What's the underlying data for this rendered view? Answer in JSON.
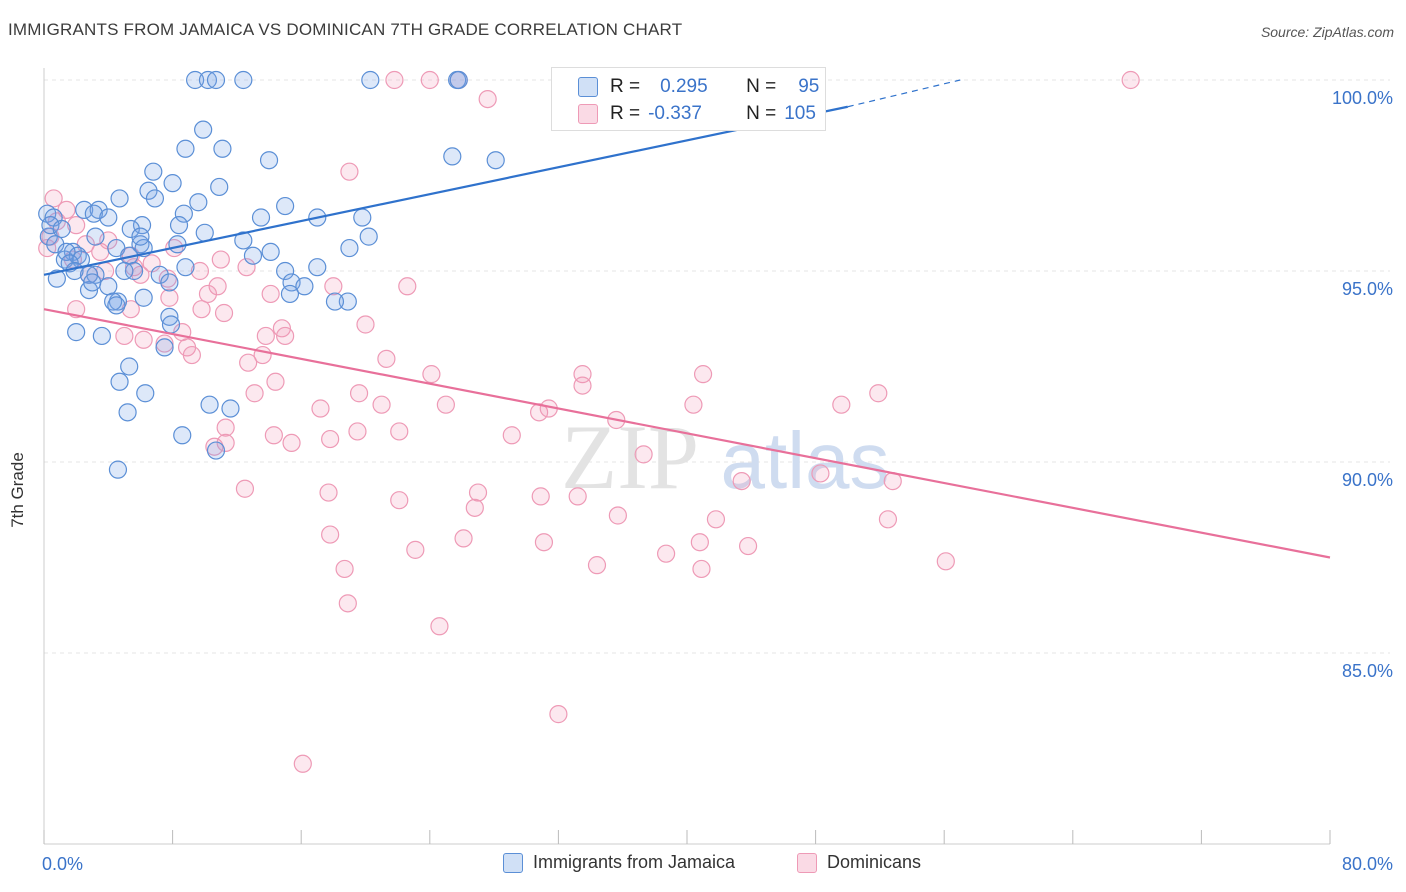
{
  "title": "IMMIGRANTS FROM JAMAICA VS DOMINICAN 7TH GRADE CORRELATION CHART",
  "source": "Source: ZipAtlas.com",
  "watermark": {
    "zip": "ZIP",
    "atlas": "atlas"
  },
  "legend": {
    "jamaica": {
      "r_label": "R =",
      "r_value": "0.295",
      "n_label": "N =",
      "n_value": "95"
    },
    "dominican": {
      "r_label": "R =",
      "r_value": "-0.337",
      "n_label": "N =",
      "n_value": "105"
    }
  },
  "bottom_legend": {
    "jamaica": "Immigrants from Jamaica",
    "dominican": "Dominicans"
  },
  "colors": {
    "jamaica_fill": "rgba(120,165,230,0.25)",
    "jamaica_stroke": "#5b8fd6",
    "jamaica_line": "#2f72cc",
    "dominican_fill": "rgba(240,150,180,0.22)",
    "dominican_stroke": "#ee9ab6",
    "dominican_line": "#e8709a",
    "tick_label": "#3a73c9"
  },
  "chart_data": {
    "type": "scatter",
    "title": "IMMIGRANTS FROM JAMAICA VS DOMINICAN 7TH GRADE CORRELATION CHART",
    "xlabel": "",
    "ylabel": "7th Grade",
    "xlim": [
      0,
      80
    ],
    "ylim": [
      80.5,
      100.8
    ],
    "x_tick_labels": [
      {
        "x": 0,
        "label": "0.0%"
      },
      {
        "x": 80,
        "label": "80.0%"
      }
    ],
    "y_tick_labels": [
      {
        "y": 100,
        "label": "100.0%"
      },
      {
        "y": 95,
        "label": "95.0%"
      },
      {
        "y": 90,
        "label": "90.0%"
      },
      {
        "y": 85,
        "label": "85.0%"
      }
    ],
    "grid": true,
    "series": [
      {
        "name": "Immigrants from Jamaica",
        "r": 0.295,
        "n": 95,
        "trend": {
          "x0": 0,
          "y0": 94.9,
          "x1": 50,
          "y1": 99.3,
          "dash_x1": 57,
          "dash_y1": 100.0
        },
        "points": [
          [
            9.4,
            100
          ],
          [
            10.2,
            100
          ],
          [
            10.7,
            100
          ],
          [
            12.4,
            100
          ],
          [
            20.3,
            100
          ],
          [
            25.7,
            100
          ],
          [
            25.8,
            100
          ],
          [
            43.5,
            100
          ],
          [
            9.9,
            98.7
          ],
          [
            8.8,
            98.2
          ],
          [
            11.1,
            98.2
          ],
          [
            28.1,
            97.9
          ],
          [
            14.0,
            97.9
          ],
          [
            6.8,
            97.6
          ],
          [
            8.0,
            97.3
          ],
          [
            10.9,
            97.2
          ],
          [
            6.5,
            97.1
          ],
          [
            6.9,
            96.9
          ],
          [
            4.7,
            96.9
          ],
          [
            9.6,
            96.8
          ],
          [
            15.0,
            96.7
          ],
          [
            2.5,
            96.6
          ],
          [
            3.4,
            96.6
          ],
          [
            3.1,
            96.5
          ],
          [
            8.7,
            96.5
          ],
          [
            4.0,
            96.4
          ],
          [
            13.5,
            96.4
          ],
          [
            17.0,
            96.4
          ],
          [
            19.8,
            96.4
          ],
          [
            6.1,
            96.2
          ],
          [
            8.4,
            96.2
          ],
          [
            5.4,
            96.1
          ],
          [
            0.3,
            95.9
          ],
          [
            3.2,
            95.9
          ],
          [
            20.2,
            95.9
          ],
          [
            12.4,
            95.8
          ],
          [
            8.3,
            95.7
          ],
          [
            6.0,
            95.7
          ],
          [
            6.2,
            95.6
          ],
          [
            4.5,
            95.6
          ],
          [
            19.0,
            95.6
          ],
          [
            1.8,
            95.5
          ],
          [
            14.1,
            95.5
          ],
          [
            5.3,
            95.4
          ],
          [
            13.0,
            95.4
          ],
          [
            1.3,
            95.3
          ],
          [
            2.1,
            95.4
          ],
          [
            5.6,
            95.0
          ],
          [
            7.2,
            94.9
          ],
          [
            8.8,
            95.1
          ],
          [
            5.0,
            95.0
          ],
          [
            17.0,
            95.1
          ],
          [
            3.2,
            94.9
          ],
          [
            15.0,
            95.0
          ],
          [
            2.8,
            94.9
          ],
          [
            4.0,
            94.6
          ],
          [
            7.8,
            94.7
          ],
          [
            15.4,
            94.7
          ],
          [
            2.8,
            94.5
          ],
          [
            16.2,
            94.6
          ],
          [
            15.3,
            94.4
          ],
          [
            4.6,
            94.2
          ],
          [
            18.9,
            94.2
          ],
          [
            4.3,
            94.2
          ],
          [
            18.1,
            94.2
          ],
          [
            6.2,
            94.3
          ],
          [
            4.5,
            94.1
          ],
          [
            7.8,
            93.8
          ],
          [
            7.9,
            93.6
          ],
          [
            2.0,
            93.4
          ],
          [
            3.6,
            93.3
          ],
          [
            7.5,
            93.0
          ],
          [
            5.3,
            92.5
          ],
          [
            4.7,
            92.1
          ],
          [
            6.3,
            91.8
          ],
          [
            10.3,
            91.5
          ],
          [
            11.6,
            91.4
          ],
          [
            5.2,
            91.3
          ],
          [
            8.6,
            90.7
          ],
          [
            10.7,
            90.3
          ],
          [
            4.6,
            89.8
          ],
          [
            0.2,
            96.5
          ],
          [
            0.6,
            96.4
          ],
          [
            0.4,
            96.2
          ],
          [
            1.1,
            96.1
          ],
          [
            0.7,
            95.7
          ],
          [
            1.4,
            95.5
          ],
          [
            2.3,
            95.3
          ],
          [
            1.6,
            95.2
          ],
          [
            1.9,
            95.0
          ],
          [
            0.8,
            94.8
          ],
          [
            25.4,
            98.0
          ],
          [
            10.0,
            96.0
          ],
          [
            6.0,
            95.9
          ],
          [
            3.0,
            94.7
          ]
        ]
      },
      {
        "name": "Dominicans",
        "r": -0.337,
        "n": 105,
        "trend": {
          "x0": 0,
          "y0": 94.0,
          "x1": 80,
          "y1": 87.5
        },
        "points": [
          [
            21.8,
            100
          ],
          [
            24.0,
            100
          ],
          [
            25.8,
            100
          ],
          [
            37.5,
            100
          ],
          [
            67.6,
            100
          ],
          [
            27.6,
            99.5
          ],
          [
            19.0,
            97.6
          ],
          [
            0.6,
            96.9
          ],
          [
            1.4,
            96.6
          ],
          [
            0.8,
            96.3
          ],
          [
            2.0,
            96.2
          ],
          [
            0.4,
            95.9
          ],
          [
            2.6,
            95.7
          ],
          [
            8.1,
            95.6
          ],
          [
            3.5,
            95.5
          ],
          [
            5.4,
            95.4
          ],
          [
            11.0,
            95.3
          ],
          [
            6.7,
            95.2
          ],
          [
            12.6,
            95.1
          ],
          [
            5.6,
            95.1
          ],
          [
            3.8,
            95.0
          ],
          [
            9.7,
            95.0
          ],
          [
            2.8,
            94.9
          ],
          [
            7.7,
            94.8
          ],
          [
            10.8,
            94.6
          ],
          [
            18.0,
            94.6
          ],
          [
            22.6,
            94.6
          ],
          [
            14.1,
            94.4
          ],
          [
            10.2,
            94.4
          ],
          [
            7.8,
            94.3
          ],
          [
            2.0,
            94.0
          ],
          [
            9.8,
            94.0
          ],
          [
            5.4,
            94.0
          ],
          [
            11.2,
            93.9
          ],
          [
            20.0,
            93.6
          ],
          [
            14.8,
            93.5
          ],
          [
            15.0,
            93.3
          ],
          [
            8.6,
            93.4
          ],
          [
            5.0,
            93.3
          ],
          [
            13.8,
            93.3
          ],
          [
            6.2,
            93.2
          ],
          [
            7.5,
            93.1
          ],
          [
            8.9,
            93.0
          ],
          [
            9.2,
            92.8
          ],
          [
            13.6,
            92.8
          ],
          [
            21.3,
            92.7
          ],
          [
            12.7,
            92.6
          ],
          [
            24.1,
            92.3
          ],
          [
            33.5,
            92.3
          ],
          [
            41.0,
            92.3
          ],
          [
            14.4,
            92.1
          ],
          [
            33.5,
            92.0
          ],
          [
            13.1,
            91.8
          ],
          [
            19.6,
            91.8
          ],
          [
            51.9,
            91.8
          ],
          [
            21.0,
            91.5
          ],
          [
            25.0,
            91.5
          ],
          [
            40.4,
            91.5
          ],
          [
            49.6,
            91.5
          ],
          [
            30.8,
            91.3
          ],
          [
            31.4,
            91.4
          ],
          [
            17.2,
            91.4
          ],
          [
            35.6,
            91.1
          ],
          [
            11.3,
            90.9
          ],
          [
            19.5,
            90.8
          ],
          [
            22.1,
            90.8
          ],
          [
            14.3,
            90.7
          ],
          [
            15.4,
            90.5
          ],
          [
            17.8,
            90.6
          ],
          [
            10.6,
            90.4
          ],
          [
            29.1,
            90.7
          ],
          [
            11.3,
            90.5
          ],
          [
            37.3,
            90.2
          ],
          [
            48.3,
            89.7
          ],
          [
            43.4,
            89.5
          ],
          [
            52.8,
            89.5
          ],
          [
            12.5,
            89.3
          ],
          [
            17.7,
            89.2
          ],
          [
            27.0,
            89.2
          ],
          [
            33.2,
            89.1
          ],
          [
            30.9,
            89.1
          ],
          [
            22.1,
            89.0
          ],
          [
            26.8,
            88.8
          ],
          [
            35.7,
            88.6
          ],
          [
            41.8,
            88.5
          ],
          [
            52.5,
            88.5
          ],
          [
            17.8,
            88.1
          ],
          [
            26.1,
            88.0
          ],
          [
            40.8,
            87.9
          ],
          [
            31.1,
            87.9
          ],
          [
            43.8,
            87.8
          ],
          [
            23.1,
            87.7
          ],
          [
            38.7,
            87.6
          ],
          [
            34.4,
            87.3
          ],
          [
            56.1,
            87.4
          ],
          [
            18.7,
            87.2
          ],
          [
            40.9,
            87.2
          ],
          [
            18.9,
            86.3
          ],
          [
            24.6,
            85.7
          ],
          [
            32.0,
            83.4
          ],
          [
            16.1,
            82.1
          ],
          [
            0.2,
            95.6
          ],
          [
            4.0,
            95.8
          ],
          [
            1.8,
            95.3
          ],
          [
            6.0,
            94.9
          ]
        ]
      }
    ]
  }
}
